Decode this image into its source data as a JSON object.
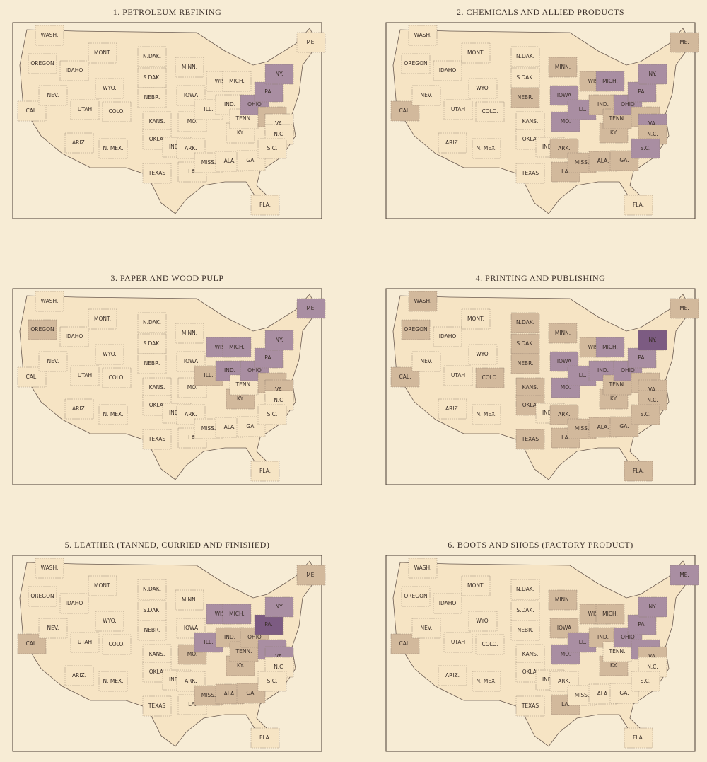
{
  "state_labels": [
    "WASH.",
    "OREGON",
    "CAL.",
    "NEV.",
    "IDAHO",
    "MONT.",
    "WYO.",
    "UTAH",
    "ARIZ.",
    "COLO.",
    "N. MEX.",
    "N.DAK.",
    "S.DAK.",
    "NEBR.",
    "KANS.",
    "OKLA.",
    "IND.T.",
    "TEXAS",
    "MINN.",
    "IOWA",
    "MO.",
    "ARK.",
    "LA.",
    "WIS.",
    "ILL.",
    "MISS.",
    "MICH.",
    "IND.",
    "KY.",
    "TENN.",
    "ALA.",
    "GA.",
    "FLA.",
    "OHIO",
    "W.VA.",
    "VA.",
    "N.C.",
    "S.C.",
    "PA.",
    "NY.",
    "ME."
  ],
  "palette": [
    "#f6e4c4",
    "#d2b99c",
    "#a98ea2",
    "#7c5b82"
  ],
  "maps": [
    {
      "title": "1. PETROLEUM REFINING",
      "levels": [
        0,
        0,
        0,
        0,
        0,
        0,
        0,
        0,
        0,
        0,
        0,
        0,
        0,
        0,
        0,
        0,
        0,
        0,
        0,
        0,
        0,
        0,
        0,
        0,
        0,
        0,
        0,
        0,
        0,
        0,
        0,
        0,
        0,
        2,
        1,
        0,
        0,
        0,
        2,
        2,
        0
      ]
    },
    {
      "title": "2. CHEMICALS AND ALLIED PRODUCTS",
      "levels": [
        0,
        0,
        1,
        0,
        0,
        0,
        0,
        0,
        0,
        0,
        0,
        0,
        0,
        1,
        0,
        0,
        0,
        0,
        1,
        2,
        2,
        1,
        1,
        1,
        2,
        1,
        2,
        1,
        1,
        1,
        1,
        1,
        0,
        2,
        1,
        2,
        1,
        2,
        2,
        2,
        1
      ]
    },
    {
      "title": "3. PAPER AND WOOD PULP",
      "levels": [
        0,
        1,
        0,
        0,
        0,
        0,
        0,
        0,
        0,
        0,
        0,
        0,
        0,
        0,
        0,
        0,
        0,
        0,
        0,
        0,
        0,
        0,
        0,
        2,
        1,
        0,
        2,
        2,
        1,
        0,
        0,
        0,
        0,
        2,
        1,
        1,
        0,
        0,
        2,
        2,
        2
      ]
    },
    {
      "title": "4. PRINTING AND PUBLISHING",
      "levels": [
        1,
        1,
        1,
        0,
        0,
        0,
        0,
        0,
        0,
        1,
        0,
        1,
        1,
        1,
        1,
        1,
        0,
        1,
        1,
        2,
        2,
        1,
        1,
        1,
        2,
        1,
        2,
        2,
        1,
        1,
        1,
        1,
        1,
        2,
        1,
        1,
        1,
        1,
        2,
        3,
        1
      ]
    },
    {
      "title": "5. LEATHER (TANNED, CURRIED AND FINISHED)",
      "levels": [
        0,
        0,
        1,
        0,
        0,
        0,
        0,
        0,
        0,
        0,
        0,
        0,
        0,
        0,
        0,
        0,
        0,
        0,
        0,
        0,
        1,
        0,
        0,
        2,
        2,
        1,
        2,
        1,
        1,
        1,
        1,
        1,
        0,
        1,
        2,
        2,
        0,
        0,
        3,
        2,
        1
      ]
    },
    {
      "title": "6. BOOTS AND SHOES (FACTORY PRODUCT)",
      "levels": [
        0,
        0,
        1,
        0,
        0,
        0,
        0,
        0,
        0,
        0,
        0,
        0,
        0,
        0,
        0,
        0,
        0,
        0,
        1,
        1,
        2,
        0,
        1,
        1,
        2,
        0,
        1,
        1,
        1,
        0,
        0,
        0,
        0,
        2,
        2,
        1,
        0,
        0,
        2,
        2,
        2
      ]
    }
  ]
}
